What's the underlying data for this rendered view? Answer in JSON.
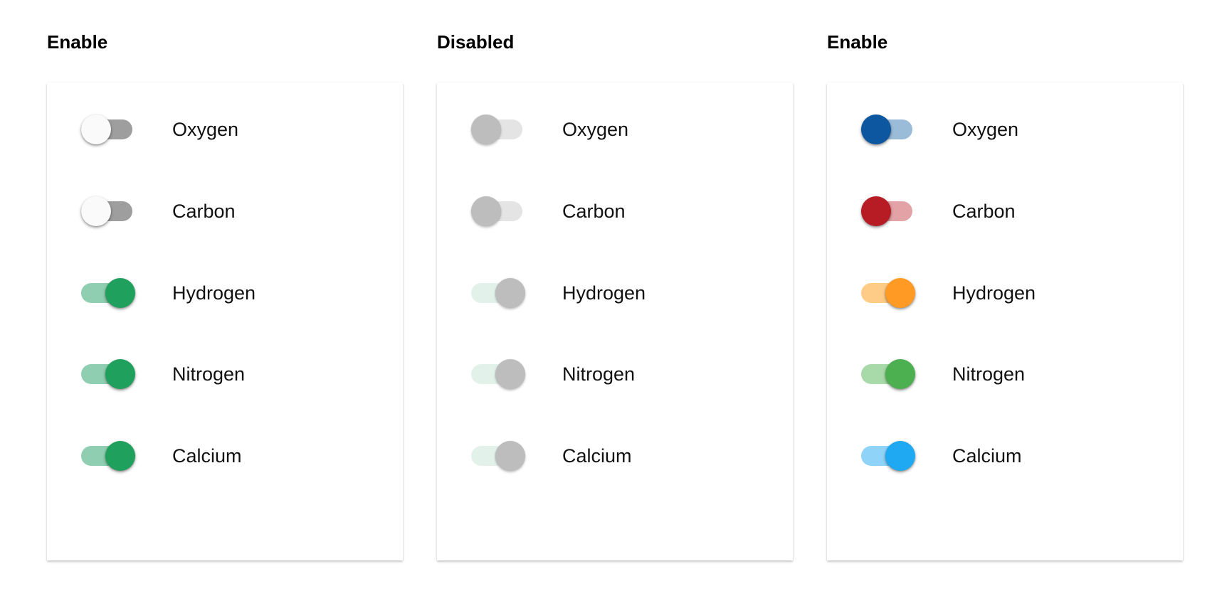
{
  "columns": [
    {
      "title": "Enable",
      "state": "enabled",
      "items": [
        {
          "label": "Oxygen",
          "on": false,
          "track_color": "#9e9e9e",
          "thumb_color": "#fafafa"
        },
        {
          "label": "Carbon",
          "on": false,
          "track_color": "#9e9e9e",
          "thumb_color": "#fafafa"
        },
        {
          "label": "Hydrogen",
          "on": true,
          "track_color": "#8fceb0",
          "thumb_color": "#1fa05c"
        },
        {
          "label": "Nitrogen",
          "on": true,
          "track_color": "#8fceb0",
          "thumb_color": "#1fa05c"
        },
        {
          "label": "Calcium",
          "on": true,
          "track_color": "#8fceb0",
          "thumb_color": "#1fa05c"
        }
      ]
    },
    {
      "title": "Disabled",
      "state": "disabled",
      "items": [
        {
          "label": "Oxygen",
          "on": false,
          "track_color": "#e4e4e4",
          "thumb_color": "#bdbdbd"
        },
        {
          "label": "Carbon",
          "on": false,
          "track_color": "#e4e4e4",
          "thumb_color": "#bdbdbd"
        },
        {
          "label": "Hydrogen",
          "on": true,
          "track_color": "#e2f2ea",
          "thumb_color": "#bdbdbd"
        },
        {
          "label": "Nitrogen",
          "on": true,
          "track_color": "#e2f2ea",
          "thumb_color": "#bdbdbd"
        },
        {
          "label": "Calcium",
          "on": true,
          "track_color": "#e2f2ea",
          "thumb_color": "#bdbdbd"
        }
      ]
    },
    {
      "title": "Enable",
      "state": "enabled",
      "items": [
        {
          "label": "Oxygen",
          "on": false,
          "track_color": "#9bbcd8",
          "thumb_color": "#0d56a0"
        },
        {
          "label": "Carbon",
          "on": false,
          "track_color": "#e3a3a6",
          "thumb_color": "#b71c24"
        },
        {
          "label": "Hydrogen",
          "on": true,
          "track_color": "#ffcc88",
          "thumb_color": "#ff9a24"
        },
        {
          "label": "Nitrogen",
          "on": true,
          "track_color": "#a8d9a8",
          "thumb_color": "#4caf50"
        },
        {
          "label": "Calcium",
          "on": true,
          "track_color": "#8fd4f8",
          "thumb_color": "#1ea9f2"
        }
      ]
    }
  ]
}
